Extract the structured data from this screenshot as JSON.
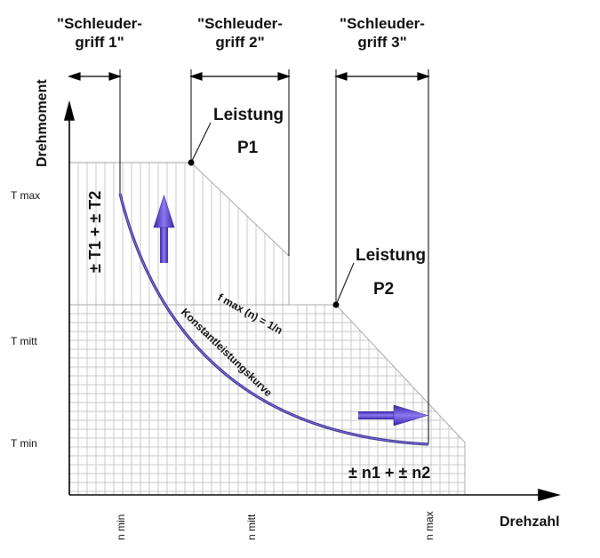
{
  "headers": {
    "grip1_line1": "\"Schleuder-",
    "grip1_line2": "griff 1\"",
    "grip2_line1": "\"Schleuder-",
    "grip2_line2": "griff 2\"",
    "grip3_line1": "\"Schleuder-",
    "grip3_line2": "griff 3\""
  },
  "axes": {
    "y_label": "Drehmoment",
    "x_label": "Drehzahl",
    "y_ticks": {
      "tmax": "T max",
      "tmitt": "T mitt",
      "tmin": "T min"
    },
    "x_ticks": {
      "nmin": "n min",
      "nmitt": "n mitt",
      "nmax": "n max"
    }
  },
  "power": {
    "p1_title": "Leistung",
    "p1_name": "P1",
    "p2_title": "Leistung",
    "p2_name": "P2"
  },
  "curve": {
    "formula": "f max (n) = 1/n",
    "name": "Konstantleistungskurve"
  },
  "tolerances": {
    "torque": "± T1 + ± T2",
    "speed": "± n1 + ± n2"
  },
  "colors": {
    "curve": "#3a2f8f",
    "arrow": "#5a3fd6",
    "grid": "#c8c8c8",
    "axis": "#000000"
  },
  "icons": {
    "up_arrow": "up-arrow-icon",
    "right_arrow": "right-arrow-icon"
  }
}
